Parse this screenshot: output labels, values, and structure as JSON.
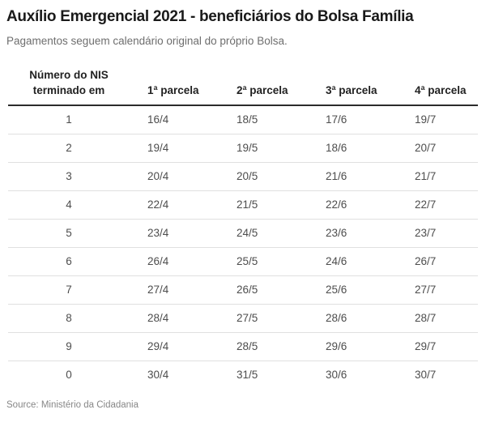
{
  "header": {
    "title": "Auxílio Emergencial 2021 - beneficiários do Bolsa Família",
    "subtitle": "Pagamentos seguem calendário original do próprio Bolsa."
  },
  "table": {
    "columns": [
      "Número do NIS\nterminado em",
      "1ª parcela",
      "2ª parcela",
      "3ª parcela",
      "4ª parcela"
    ]
  },
  "footer": {
    "source": "Source: Ministério da Cidadania"
  },
  "colors": {
    "background": "#ffffff",
    "title_text": "#1a1a1a",
    "subtitle_text": "#6e6e6e",
    "header_text": "#222222",
    "cell_text": "#4d4d4d",
    "header_rule": "#2b2b2b",
    "row_divider": "#e0e0e0",
    "source_text": "#878787"
  },
  "chart_data": {
    "type": "table",
    "title": "Auxílio Emergencial 2021 - beneficiários do Bolsa Família",
    "subtitle": "Pagamentos seguem calendário original do próprio Bolsa.",
    "source": "Source: Ministério da Cidadania",
    "columns": [
      "Número do NIS terminado em",
      "1ª parcela",
      "2ª parcela",
      "3ª parcela",
      "4ª parcela"
    ],
    "rows": [
      [
        "1",
        "16/4",
        "18/5",
        "17/6",
        "19/7"
      ],
      [
        "2",
        "19/4",
        "19/5",
        "18/6",
        "20/7"
      ],
      [
        "3",
        "20/4",
        "20/5",
        "21/6",
        "21/7"
      ],
      [
        "4",
        "22/4",
        "21/5",
        "22/6",
        "22/7"
      ],
      [
        "5",
        "23/4",
        "24/5",
        "23/6",
        "23/7"
      ],
      [
        "6",
        "26/4",
        "25/5",
        "24/6",
        "26/7"
      ],
      [
        "7",
        "27/4",
        "26/5",
        "25/6",
        "27/7"
      ],
      [
        "8",
        "28/4",
        "27/5",
        "28/6",
        "28/7"
      ],
      [
        "9",
        "29/4",
        "28/5",
        "29/6",
        "29/7"
      ],
      [
        "0",
        "30/4",
        "31/5",
        "30/6",
        "30/7"
      ]
    ]
  }
}
